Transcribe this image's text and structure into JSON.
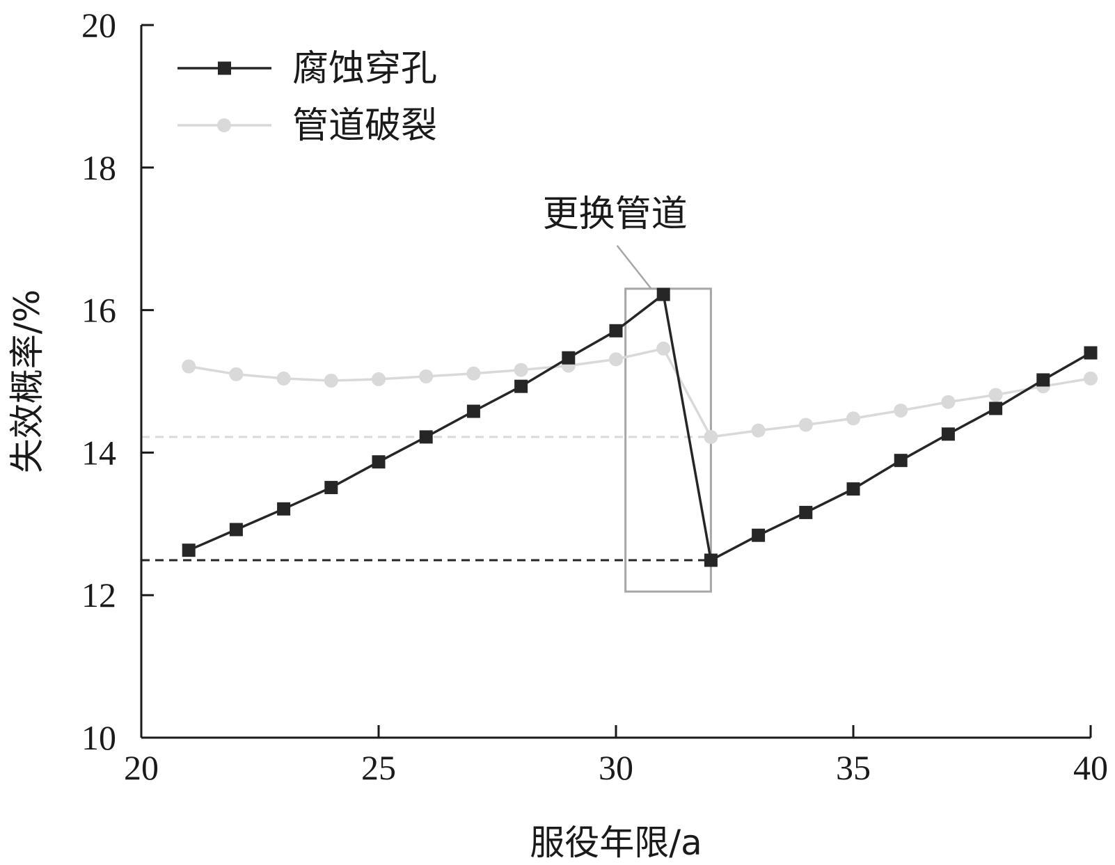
{
  "chart_data": {
    "type": "line",
    "xlabel": "服役年限/a",
    "ylabel": "失效概率/%",
    "xlim": [
      20,
      40
    ],
    "ylim": [
      10,
      20
    ],
    "xticks": [
      "20",
      "25",
      "30",
      "35",
      "40"
    ],
    "yticks": [
      "10",
      "12",
      "14",
      "16",
      "18",
      "20"
    ],
    "x": [
      21,
      22,
      23,
      24,
      25,
      26,
      27,
      28,
      29,
      30,
      31,
      32,
      33,
      34,
      35,
      36,
      37,
      38,
      39,
      40
    ],
    "series": [
      {
        "name": "腐蚀穿孔",
        "color": "#262626",
        "marker": "square",
        "values": [
          12.63,
          12.92,
          13.21,
          13.51,
          13.87,
          14.22,
          14.58,
          14.93,
          15.33,
          15.71,
          16.22,
          12.49,
          12.84,
          13.16,
          13.49,
          13.89,
          14.26,
          14.62,
          15.02,
          15.4
        ]
      },
      {
        "name": "管道破裂",
        "color": "#d9d9d9",
        "marker": "circle",
        "values": [
          15.21,
          15.1,
          15.04,
          15.01,
          15.03,
          15.07,
          15.11,
          15.16,
          15.22,
          15.31,
          15.46,
          14.22,
          14.31,
          14.39,
          14.48,
          14.59,
          14.71,
          14.81,
          14.93,
          15.04
        ]
      }
    ],
    "reference_lines": [
      {
        "y": 14.22,
        "color": "#d9d9d9",
        "style": "dashed"
      },
      {
        "y": 12.49,
        "color": "#262626",
        "style": "dashed"
      }
    ],
    "annotation": {
      "text": "更换管道",
      "box_x": [
        30.2,
        32.0
      ],
      "box_y": [
        12.05,
        16.3
      ],
      "color": "#a6a6a6"
    },
    "legend": {
      "position": "top-left"
    },
    "grid": false
  }
}
